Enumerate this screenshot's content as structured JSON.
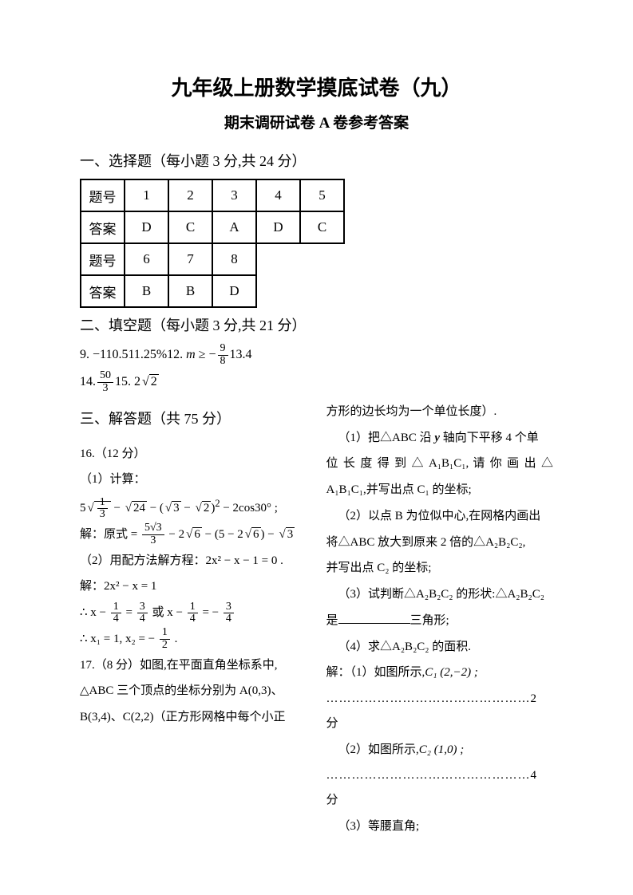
{
  "title": "九年级上册数学摸底试卷（九）",
  "subtitle": "期末调研试卷 A 卷参考答案",
  "section1": {
    "header": "一、选择题（每小题 3 分,共 24 分）",
    "row1_label": "题号",
    "row1": [
      "1",
      "2",
      "3",
      "4",
      "5"
    ],
    "row2_label": "答案",
    "row2": [
      "D",
      "C",
      "A",
      "D",
      "C"
    ],
    "row3_label": "题号",
    "row3": [
      "6",
      "7",
      "8"
    ],
    "row4_label": "答案",
    "row4": [
      "B",
      "B",
      "D"
    ]
  },
  "section2": {
    "header": "二、填空题（每小题 3 分,共 21 分）",
    "q9": "9. −1",
    "q10": "10.5",
    "q11": "11.25%",
    "q12_prefix": "12. ",
    "q12_var": "m",
    "q12_op": " ≥ −",
    "q12_num": "9",
    "q12_den": "8",
    "q13": "13.4",
    "q14_prefix": "14.",
    "q14_num": "50",
    "q14_den": "3",
    "q15_prefix": "15. 2",
    "q15_rad": "2"
  },
  "section3": {
    "header": "三、解答题（共 75 分）",
    "q16_header": "16.（12 分）",
    "q16_1": "（1）计算：",
    "q16_1_expr_a": "5",
    "q16_1_expr_frac_num": "1",
    "q16_1_expr_frac_den": "3",
    "q16_1_expr_b": " − ",
    "q16_1_expr_rad1": "24",
    "q16_1_expr_c": " − (",
    "q16_1_expr_rad2": "3",
    "q16_1_expr_d": " − ",
    "q16_1_expr_rad3": "2",
    "q16_1_expr_e": ")",
    "q16_1_expr_sup": "2",
    "q16_1_expr_f": " − 2cos30° ;",
    "q16_1_sol_prefix": "解：原式 = ",
    "q16_1_sol_num": "5√3",
    "q16_1_sol_den": "3",
    "q16_1_sol_b": " − 2",
    "q16_1_sol_rad1": "6",
    "q16_1_sol_c": " − (5 − 2",
    "q16_1_sol_rad2": "6",
    "q16_1_sol_d": ") − ",
    "q16_1_sol_rad3": "3",
    "q16_2": "（2）用配方法解方程：2x² − x − 1 = 0 .",
    "q16_2_sol1": "解：2x² − x = 1",
    "q16_2_sol2_a": "∴ x − ",
    "q16_2_sol2_f1n": "1",
    "q16_2_sol2_f1d": "4",
    "q16_2_sol2_b": " = ",
    "q16_2_sol2_f2n": "3",
    "q16_2_sol2_f2d": "4",
    "q16_2_sol2_c": " 或 x − ",
    "q16_2_sol2_f3n": "1",
    "q16_2_sol2_f3d": "4",
    "q16_2_sol2_d": " = − ",
    "q16_2_sol2_f4n": "3",
    "q16_2_sol2_f4d": "4",
    "q16_2_sol3_a": "∴ x₁ = 1, x₂ = − ",
    "q16_2_sol3_fn": "1",
    "q16_2_sol3_fd": "2",
    "q16_2_sol3_b": " .",
    "q17_a": "17.（8 分）如图,在平面直角坐标系中,",
    "q17_b": "△ABC 三个顶点的坐标分别为 A(0,3)、",
    "q17_c": "B(3,4)、C(2,2)（正方形网格中每个小正",
    "right_0": "方形的边长均为一个单位长度）.",
    "right_1a": "（1）把△ABC 沿 ",
    "right_1b": "y",
    "right_1c": " 轴向下平移 4 个单",
    "right_1d": "位 长 度 得 到 △ A₁B₁C₁, 请 你 画 出 △",
    "right_1e": "A₁B₁C₁,并写出点 C₁ 的坐标;",
    "right_2a": "（2）以点 B 为位似中心,在网格内画出",
    "right_2b": "将△ABC 放大到原来 2 倍的△A₂B₂C₂,",
    "right_2c": "并写出点 C₂ 的坐标;",
    "right_3a": "（3）试判断△A₂B₂C₂ 的形状:△A₂B₂C₂",
    "right_3b": "是",
    "right_3c": "三角形;",
    "right_4": "（4）求△A₂B₂C₂ 的面积.",
    "sol_1a": "解：（1）如图所示,",
    "sol_1b": "C₁ (2,−2) ;",
    "dots1": "…………………………………………2 分",
    "sol_2a": "（2）如图所示,",
    "sol_2b": "C₂ (1,0) ;",
    "dots2": "…………………………………………4 分",
    "sol_3": "（3）等腰直角;"
  },
  "colors": {
    "text": "#000000",
    "bg": "#ffffff",
    "border": "#000000"
  }
}
